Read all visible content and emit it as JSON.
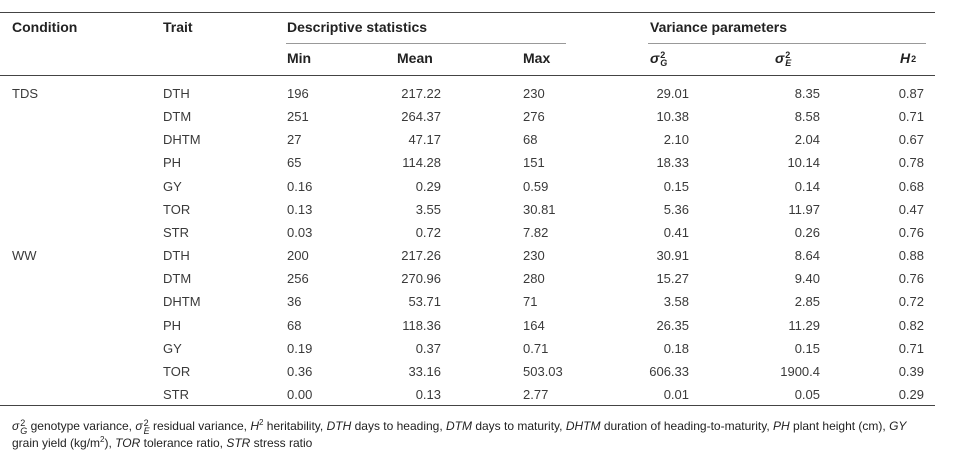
{
  "table": {
    "header": {
      "condition": "Condition",
      "trait": "Trait",
      "groups": [
        "Descriptive statistics",
        "Variance parameters"
      ],
      "columns": [
        "Min",
        "Mean",
        "Max",
        {
          "text": "σ",
          "style": "italic",
          "sup": "2",
          "sub": "G"
        },
        {
          "text": "σ",
          "style": "italic",
          "sup": "2",
          "sub": "E"
        },
        {
          "text": "H",
          "style": "italic",
          "sup": "2"
        }
      ]
    },
    "groups": [
      {
        "condition": "TDS",
        "rows": [
          [
            "DTH",
            "196",
            "217.22",
            "230",
            "29.01",
            "8.35",
            "0.87"
          ],
          [
            "DTM",
            "251",
            "264.37",
            "276",
            "10.38",
            "8.58",
            "0.71"
          ],
          [
            "DHTM",
            "27",
            "47.17",
            "68",
            "2.10",
            "2.04",
            "0.67"
          ],
          [
            "PH",
            "65",
            "114.28",
            "151",
            "18.33",
            "10.14",
            "0.78"
          ],
          [
            "GY",
            "0.16",
            "0.29",
            "0.59",
            "0.15",
            "0.14",
            "0.68"
          ],
          [
            "TOR",
            "0.13",
            "3.55",
            "30.81",
            "5.36",
            "11.97",
            "0.47"
          ],
          [
            "STR",
            "0.03",
            "0.72",
            "7.82",
            "0.41",
            "0.26",
            "0.76"
          ]
        ]
      },
      {
        "condition": "WW",
        "rows": [
          [
            "DTH",
            "200",
            "217.26",
            "230",
            "30.91",
            "8.64",
            "0.88"
          ],
          [
            "DTM",
            "256",
            "270.96",
            "280",
            "15.27",
            "9.40",
            "0.76"
          ],
          [
            "DHTM",
            "36",
            "53.71",
            "71",
            "3.58",
            "2.85",
            "0.72"
          ],
          [
            "PH",
            "68",
            "118.36",
            "164",
            "26.35",
            "11.29",
            "0.82"
          ],
          [
            "GY",
            "0.19",
            "0.37",
            "0.71",
            "0.18",
            "0.15",
            "0.71"
          ],
          [
            "TOR",
            "0.36",
            "33.16",
            "503.03",
            "606.33",
            "1900.4",
            "0.39"
          ],
          [
            "STR",
            "0.00",
            "0.13",
            "2.77",
            "0.01",
            "0.05",
            "0.29"
          ]
        ]
      }
    ],
    "footnote": [
      [
        {
          "text": "σ",
          "style": "italic",
          "sup": "2",
          "sub": "G"
        },
        {
          "text": " genotype variance, "
        },
        {
          "text": "σ",
          "style": "italic",
          "sup": "2",
          "sub": "E"
        },
        {
          "text": " residual variance, "
        },
        {
          "text": "H",
          "style": "italic"
        },
        {
          "text": "2",
          "style": "sup"
        },
        {
          "text": " heritability, "
        },
        {
          "text": "DTH",
          "style": "italic"
        },
        {
          "text": " days to heading, "
        },
        {
          "text": "DTM",
          "style": "italic"
        },
        {
          "text": " days to maturity, "
        },
        {
          "text": "DHTM",
          "style": "italic"
        },
        {
          "text": " duration of heading-to-maturity, "
        },
        {
          "text": "PH",
          "style": "italic"
        },
        {
          "text": " plant height (cm), "
        },
        {
          "text": "GY",
          "style": "italic"
        }
      ],
      [
        {
          "text": "grain yield (kg/m"
        },
        {
          "text": "2",
          "style": "sup"
        },
        {
          "text": "), "
        },
        {
          "text": "TOR",
          "style": "italic"
        },
        {
          "text": " tolerance ratio, "
        },
        {
          "text": "STR",
          "style": "italic"
        },
        {
          "text": " stress ratio"
        }
      ]
    ]
  }
}
